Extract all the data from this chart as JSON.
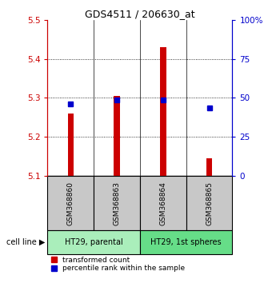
{
  "title": "GDS4511 / 206630_at",
  "samples": [
    "GSM368860",
    "GSM368863",
    "GSM368864",
    "GSM368865"
  ],
  "red_values": [
    5.26,
    5.305,
    5.43,
    5.145
  ],
  "blue_values": [
    5.285,
    5.295,
    5.295,
    5.275
  ],
  "ylim": [
    5.1,
    5.5
  ],
  "yticks_left": [
    5.1,
    5.2,
    5.3,
    5.4,
    5.5
  ],
  "yticks_right": [
    0,
    25,
    50,
    75,
    100
  ],
  "yticks_right_labels": [
    "0",
    "25",
    "50",
    "75",
    "100%"
  ],
  "grid_values": [
    5.2,
    5.3,
    5.4
  ],
  "cell_line_groups": [
    {
      "label": "HT29, parental",
      "indices": [
        0,
        1
      ],
      "color": "#aaeebb"
    },
    {
      "label": "HT29, 1st spheres",
      "indices": [
        2,
        3
      ],
      "color": "#66dd88"
    }
  ],
  "bar_bottom": 5.1,
  "red_color": "#cc0000",
  "blue_color": "#0000cc",
  "sample_box_color": "#c8c8c8",
  "legend_red_label": "transformed count",
  "legend_blue_label": "percentile rank within the sample"
}
